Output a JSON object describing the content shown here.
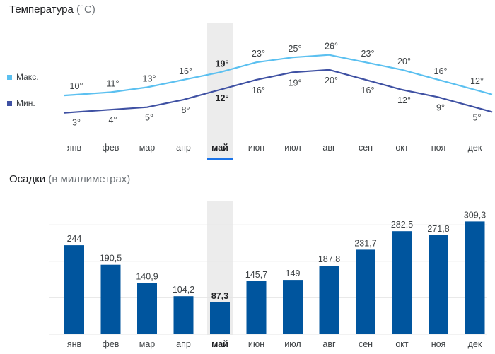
{
  "temperature": {
    "title": "Температура",
    "unit": "(°C)",
    "legend": {
      "max_label": "Макс.",
      "min_label": "Мин."
    }
  },
  "precipitation": {
    "title": "Осадки",
    "unit": "(в миллиметрах)"
  },
  "selected_month": "май",
  "colors": {
    "max": "#5bc0f0",
    "min": "#3f51a3",
    "bar": "#00559e",
    "highlight": "#ececec",
    "accent": "#1a73e8"
  },
  "chart_data": [
    {
      "type": "line",
      "categories": [
        "янв",
        "фев",
        "мар",
        "апр",
        "май",
        "июн",
        "июл",
        "авг",
        "сен",
        "окт",
        "ноя",
        "дек"
      ],
      "series": [
        {
          "name": "Макс.",
          "values": [
            10,
            11,
            13,
            16,
            19,
            23,
            25,
            26,
            23,
            20,
            16,
            12
          ],
          "labels": [
            "10°",
            "11°",
            "13°",
            "16°",
            "19°",
            "23°",
            "25°",
            "26°",
            "23°",
            "20°",
            "16°",
            "12°"
          ]
        },
        {
          "name": "Мин.",
          "values": [
            3,
            4,
            5,
            8,
            12,
            16,
            19,
            20,
            16,
            12,
            9,
            5
          ],
          "labels": [
            "3°",
            "4°",
            "5°",
            "8°",
            "12°",
            "16°",
            "19°",
            "20°",
            "16°",
            "12°",
            "9°",
            "5°"
          ]
        }
      ],
      "title": "Температура (°C)",
      "legend": "left",
      "grid": false
    },
    {
      "type": "bar",
      "categories": [
        "янв",
        "фев",
        "мар",
        "апр",
        "май",
        "июн",
        "июл",
        "авг",
        "сен",
        "окт",
        "ноя",
        "дек"
      ],
      "values": [
        244,
        190.5,
        140.9,
        104.2,
        87.3,
        145.7,
        149,
        187.8,
        231.7,
        282.5,
        271.8,
        309.3
      ],
      "labels": [
        "244",
        "190,5",
        "140,9",
        "104,2",
        "87,3",
        "145,7",
        "149",
        "187,8",
        "231,7",
        "282,5",
        "271,8",
        "309,3"
      ],
      "title": "Осадки (в миллиметрах)",
      "ylim": [
        0,
        300
      ],
      "grid": true
    }
  ]
}
